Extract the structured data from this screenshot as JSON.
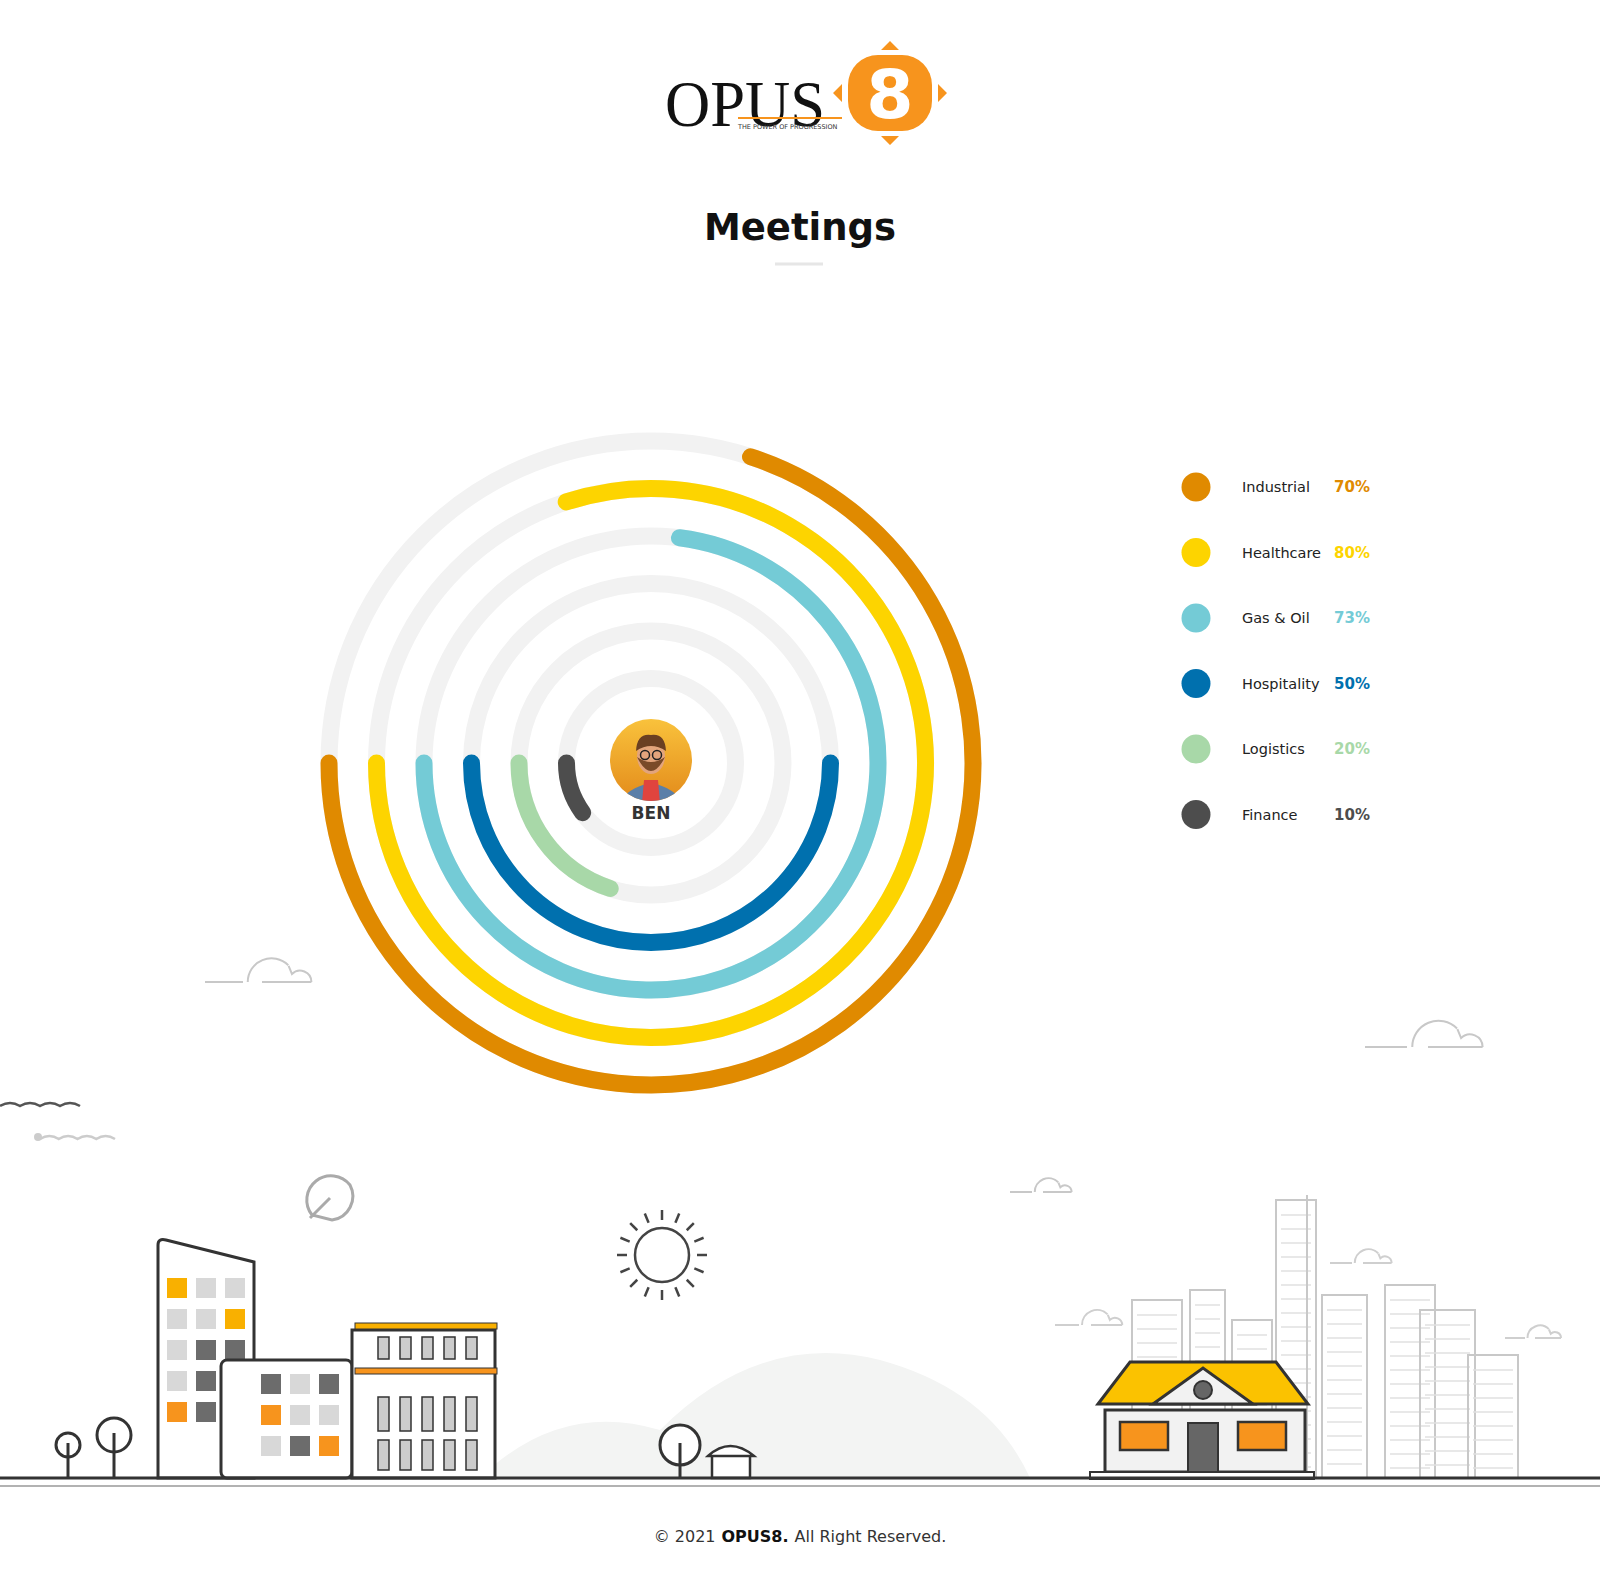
{
  "header": {
    "logo": "OPUS",
    "logo_mark": "8",
    "tagline": "THE POWER OF PROGRESSION"
  },
  "chart_data": {
    "type": "radial_bar",
    "title": "Meetings",
    "categories": [
      "Industrial",
      "Healthcare",
      "Gas & Oil",
      "Hospitality",
      "Logistics",
      "Finance"
    ],
    "values": [
      70,
      80,
      73,
      50,
      20,
      10
    ],
    "value_labels": [
      "70%",
      "80%",
      "73%",
      "50%",
      "20%",
      "10%"
    ],
    "colors": [
      "#e08a00",
      "#fdd400",
      "#74cbd6",
      "#0070ae",
      "#a8d8a8",
      "#4d4d4d"
    ],
    "ylim": [
      0,
      100
    ],
    "legend": "right",
    "annotations": [
      "BEN"
    ]
  },
  "footer": {
    "copyright": "© 2021",
    "brand": "OPUS8.",
    "rights": "All Right Reserved."
  }
}
